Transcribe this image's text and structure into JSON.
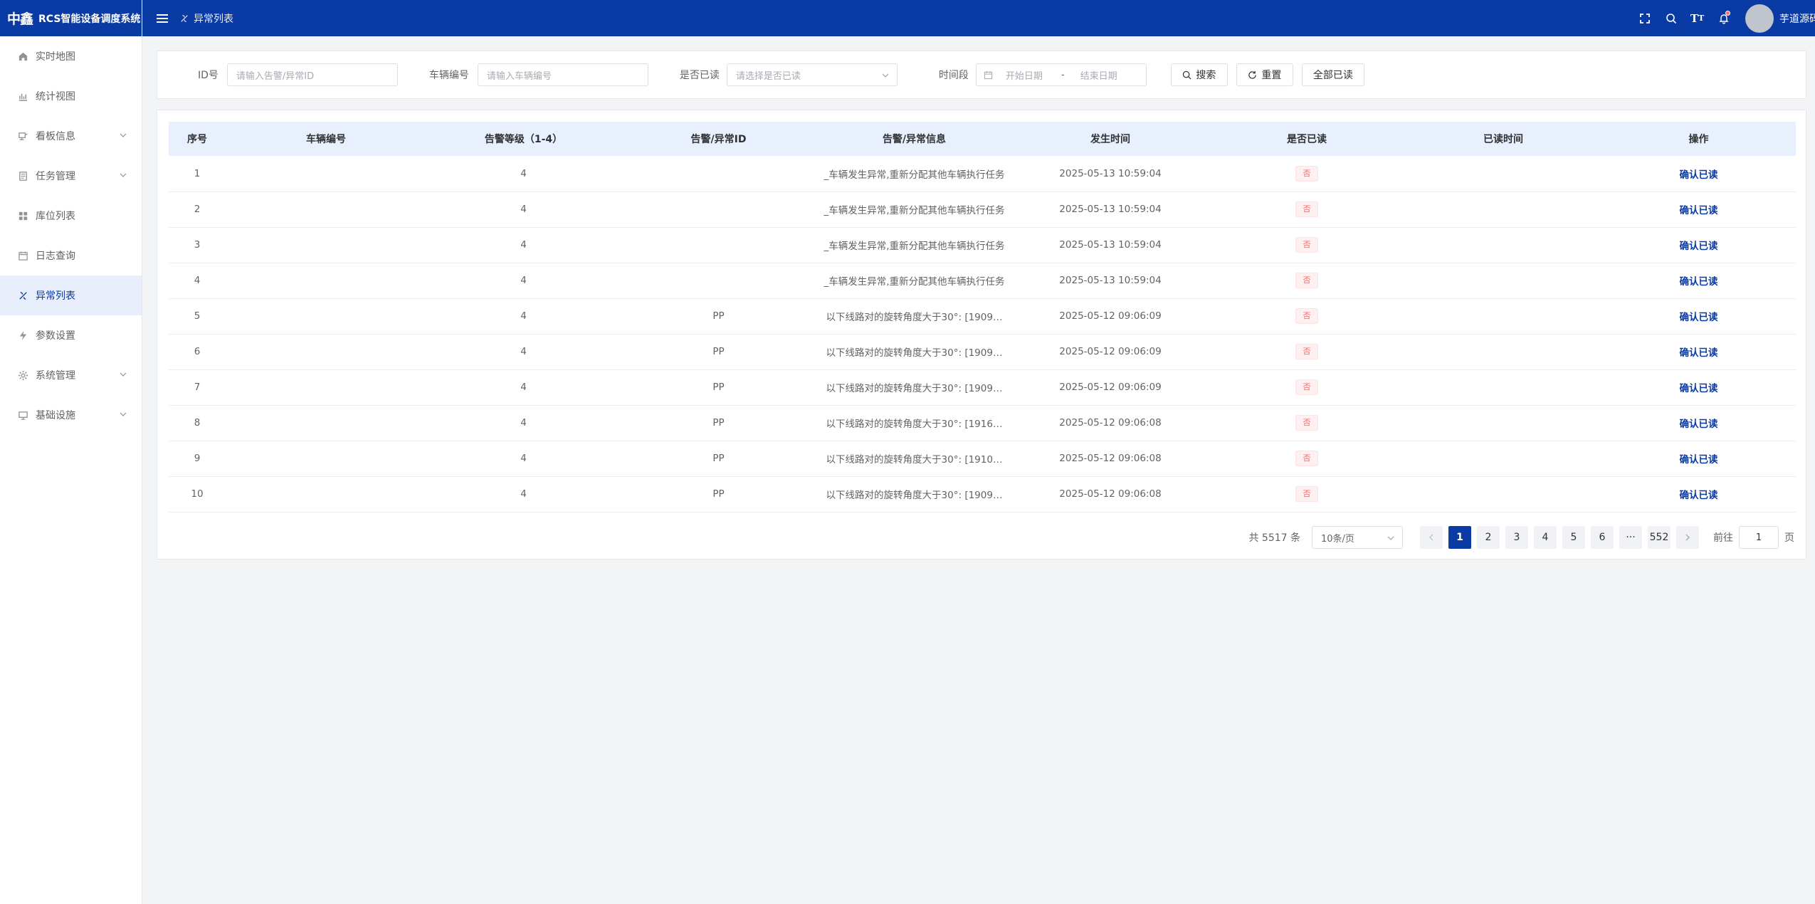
{
  "app": {
    "logo_mark": "中鑫",
    "title": "RCS智能设备调度系统"
  },
  "sidebar": {
    "items": [
      {
        "label": "实时地图",
        "icon": "home-icon",
        "expandable": false,
        "active": false
      },
      {
        "label": "统计视图",
        "icon": "bar-chart-icon",
        "expandable": false,
        "active": false
      },
      {
        "label": "看板信息",
        "icon": "board-icon",
        "expandable": true,
        "active": false
      },
      {
        "label": "任务管理",
        "icon": "task-icon",
        "expandable": true,
        "active": false
      },
      {
        "label": "库位列表",
        "icon": "grid-icon",
        "expandable": false,
        "active": false
      },
      {
        "label": "日志查询",
        "icon": "calendar-icon",
        "expandable": false,
        "active": false
      },
      {
        "label": "异常列表",
        "icon": "exception-icon",
        "expandable": false,
        "active": true
      },
      {
        "label": "参数设置",
        "icon": "lightning-icon",
        "expandable": false,
        "active": false
      },
      {
        "label": "系统管理",
        "icon": "gear-icon",
        "expandable": true,
        "active": false
      },
      {
        "label": "基础设施",
        "icon": "monitor-icon",
        "expandable": true,
        "active": false
      }
    ]
  },
  "header": {
    "breadcrumb": "异常列表",
    "username": "芋道源码"
  },
  "filters": {
    "id_label": "ID号",
    "id_placeholder": "请输入告警/异常ID",
    "vehicle_label": "车辆编号",
    "vehicle_placeholder": "请输入车辆编号",
    "read_label": "是否已读",
    "read_placeholder": "请选择是否已读",
    "time_label": "时间段",
    "start_placeholder": "开始日期",
    "range_sep": "-",
    "end_placeholder": "结束日期",
    "search_btn": "搜索",
    "reset_btn": "重置",
    "read_all_btn": "全部已读"
  },
  "table": {
    "columns": [
      "序号",
      "车辆编号",
      "告警等级（1-4）",
      "告警/异常ID",
      "告警/异常信息",
      "发生时间",
      "是否已读",
      "已读时间",
      "操作"
    ],
    "rows": [
      {
        "no": "1",
        "vehicle": "",
        "level": "4",
        "alarm_id": "",
        "info": "_车辆发生异常,重新分配其他车辆执行任务",
        "time": "2025-05-13 10:59:04",
        "read": "否",
        "read_time": "",
        "action": "确认已读"
      },
      {
        "no": "2",
        "vehicle": "",
        "level": "4",
        "alarm_id": "",
        "info": "_车辆发生异常,重新分配其他车辆执行任务",
        "time": "2025-05-13 10:59:04",
        "read": "否",
        "read_time": "",
        "action": "确认已读"
      },
      {
        "no": "3",
        "vehicle": "",
        "level": "4",
        "alarm_id": "",
        "info": "_车辆发生异常,重新分配其他车辆执行任务",
        "time": "2025-05-13 10:59:04",
        "read": "否",
        "read_time": "",
        "action": "确认已读"
      },
      {
        "no": "4",
        "vehicle": "",
        "level": "4",
        "alarm_id": "",
        "info": "_车辆发生异常,重新分配其他车辆执行任务",
        "time": "2025-05-13 10:59:04",
        "read": "否",
        "read_time": "",
        "action": "确认已读"
      },
      {
        "no": "5",
        "vehicle": "",
        "level": "4",
        "alarm_id": "PP",
        "info": "以下线路对的旋转角度大于30°: [1909…",
        "time": "2025-05-12 09:06:09",
        "read": "否",
        "read_time": "",
        "action": "确认已读"
      },
      {
        "no": "6",
        "vehicle": "",
        "level": "4",
        "alarm_id": "PP",
        "info": "以下线路对的旋转角度大于30°: [1909…",
        "time": "2025-05-12 09:06:09",
        "read": "否",
        "read_time": "",
        "action": "确认已读"
      },
      {
        "no": "7",
        "vehicle": "",
        "level": "4",
        "alarm_id": "PP",
        "info": "以下线路对的旋转角度大于30°: [1909…",
        "time": "2025-05-12 09:06:09",
        "read": "否",
        "read_time": "",
        "action": "确认已读"
      },
      {
        "no": "8",
        "vehicle": "",
        "level": "4",
        "alarm_id": "PP",
        "info": "以下线路对的旋转角度大于30°: [1916…",
        "time": "2025-05-12 09:06:08",
        "read": "否",
        "read_time": "",
        "action": "确认已读"
      },
      {
        "no": "9",
        "vehicle": "",
        "level": "4",
        "alarm_id": "PP",
        "info": "以下线路对的旋转角度大于30°: [1910…",
        "time": "2025-05-12 09:06:08",
        "read": "否",
        "read_time": "",
        "action": "确认已读"
      },
      {
        "no": "10",
        "vehicle": "",
        "level": "4",
        "alarm_id": "PP",
        "info": "以下线路对的旋转角度大于30°: [1909…",
        "time": "2025-05-12 09:06:08",
        "read": "否",
        "read_time": "",
        "action": "确认已读"
      }
    ]
  },
  "pagination": {
    "total_text": "共 5517 条",
    "page_size": "10条/页",
    "pages": [
      "1",
      "2",
      "3",
      "4",
      "5",
      "6",
      "···",
      "552"
    ],
    "current": "1",
    "goto_label": "前往",
    "goto_value": "1",
    "page_unit": "页"
  },
  "colors": {
    "brand": "#0a3aa3",
    "header_row": "#e8effd",
    "danger": "#f56c6c"
  }
}
